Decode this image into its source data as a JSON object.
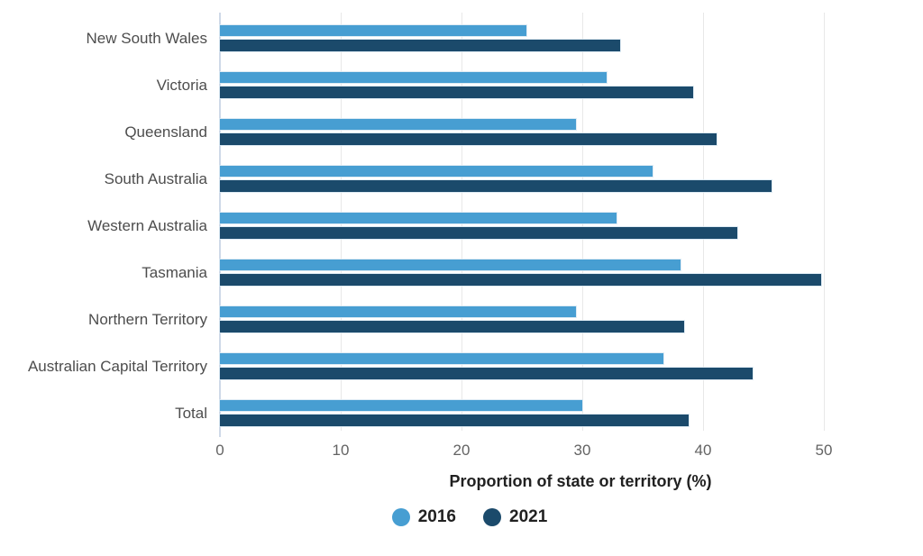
{
  "chart_data": {
    "type": "bar",
    "orientation": "horizontal",
    "title": "",
    "xlabel": "Proportion of state or territory (%)",
    "ylabel": "",
    "xlim": [
      0,
      50
    ],
    "xticks": [
      0,
      10,
      20,
      30,
      40,
      50
    ],
    "grid": "vertical",
    "legend_position": "bottom",
    "categories": [
      "New South Wales",
      "Victoria",
      "Queensland",
      "South Australia",
      "Western Australia",
      "Tasmania",
      "Northern Territory",
      "Australian Capital Territory",
      "Total"
    ],
    "series": [
      {
        "name": "2016",
        "color": "#479ED2",
        "values": [
          25.4,
          32.0,
          29.5,
          35.8,
          32.8,
          38.1,
          29.5,
          36.7,
          30.0
        ]
      },
      {
        "name": "2021",
        "color": "#1B4A6B",
        "values": [
          33.1,
          39.2,
          41.1,
          45.7,
          42.8,
          49.8,
          38.4,
          44.1,
          38.8
        ]
      }
    ]
  },
  "colors": {
    "gridline": "#e8e8e8",
    "axis_line": "#cfd9e8",
    "category_label": "#4d4d4d",
    "tick_label": "#636363",
    "text_dark": "#212121"
  }
}
